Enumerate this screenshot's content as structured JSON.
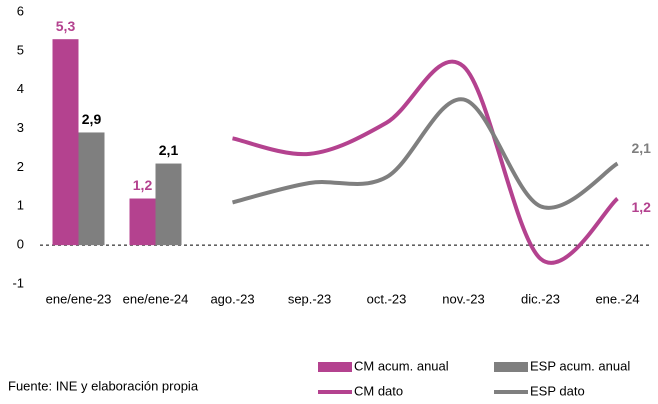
{
  "chart_data": {
    "type": "combo",
    "categories": [
      "ene/ene-23",
      "ene/ene-24",
      "ago.-23",
      "sep.-23",
      "oct.-23",
      "nov.-23",
      "dic.-23",
      "ene.-24"
    ],
    "series": [
      {
        "name": "CM acum. anual",
        "type": "bar",
        "color": "#b4428f",
        "label_color": "#b4428f",
        "values": [
          5.3,
          1.2,
          null,
          null,
          null,
          null,
          null,
          null
        ],
        "value_labels": [
          "5,3",
          "1,2",
          null,
          null,
          null,
          null,
          null,
          null
        ]
      },
      {
        "name": "ESP acum. anual",
        "type": "bar",
        "color": "#7f7f7f",
        "label_color": "#000000",
        "values": [
          2.9,
          2.1,
          null,
          null,
          null,
          null,
          null,
          null
        ],
        "value_labels": [
          "2,9",
          "2,1",
          null,
          null,
          null,
          null,
          null,
          null
        ]
      },
      {
        "name": "CM dato",
        "type": "line",
        "color": "#b4428f",
        "label_color": "#b4428f",
        "values": [
          null,
          null,
          2.75,
          2.35,
          3.15,
          4.6,
          -0.35,
          1.2
        ],
        "value_labels": [
          null,
          null,
          null,
          null,
          null,
          null,
          null,
          "1,2"
        ]
      },
      {
        "name": "ESP dato",
        "type": "line",
        "color": "#7f7f7f",
        "label_color": "#7f7f7f",
        "values": [
          null,
          null,
          1.1,
          1.6,
          1.75,
          3.75,
          1.0,
          2.1
        ],
        "value_labels": [
          null,
          null,
          null,
          null,
          null,
          null,
          null,
          "2,1"
        ]
      }
    ],
    "ylim": [
      -1,
      6
    ],
    "yticks": [
      -1,
      0,
      1,
      2,
      3,
      4,
      5,
      6
    ],
    "grid": false,
    "smooth": true,
    "legend": "bottom-right",
    "source": "Fuente: INE y elaboración propia"
  }
}
